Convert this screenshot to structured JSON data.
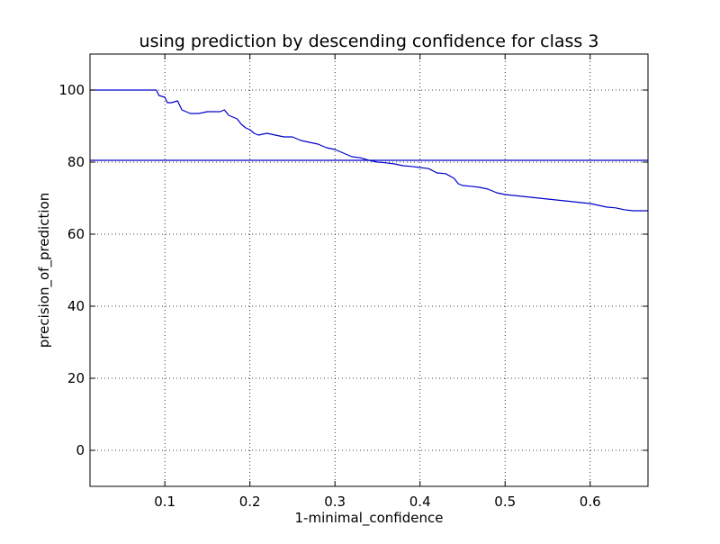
{
  "chart_data": {
    "type": "line",
    "title": "using prediction by descending confidence for class 3",
    "xlabel": "1-minimal_confidence",
    "ylabel": "precision_of_prediction",
    "xlim": [
      0.012,
      0.668
    ],
    "ylim": [
      -10,
      110
    ],
    "xticks": [
      0.1,
      0.2,
      0.3,
      0.4,
      0.5,
      0.6
    ],
    "xtick_labels": [
      "0.1",
      "0.2",
      "0.3",
      "0.4",
      "0.5",
      "0.6"
    ],
    "yticks": [
      0,
      20,
      40,
      60,
      80,
      100
    ],
    "ytick_labels": [
      "0",
      "20",
      "40",
      "60",
      "80",
      "100"
    ],
    "grid": true,
    "grid_style": "dotted",
    "line_color": "#0000cc",
    "hline": {
      "y": 80.5
    },
    "series": [
      {
        "x": [
          0.012,
          0.05,
          0.09,
          0.093,
          0.1,
          0.103,
          0.108,
          0.115,
          0.12,
          0.125,
          0.13,
          0.14,
          0.15,
          0.16,
          0.165,
          0.17,
          0.175,
          0.18,
          0.185,
          0.19,
          0.195,
          0.2,
          0.205,
          0.21,
          0.22,
          0.23,
          0.24,
          0.25,
          0.26,
          0.27,
          0.28,
          0.29,
          0.3,
          0.31,
          0.32,
          0.33,
          0.34,
          0.35,
          0.36,
          0.37,
          0.38,
          0.39,
          0.4,
          0.41,
          0.42,
          0.43,
          0.44,
          0.445,
          0.45,
          0.46,
          0.47,
          0.48,
          0.49,
          0.5,
          0.52,
          0.54,
          0.56,
          0.58,
          0.6,
          0.62,
          0.63,
          0.64,
          0.65,
          0.668
        ],
        "y": [
          100,
          100,
          100,
          98.5,
          98,
          96.5,
          96.5,
          97,
          94.5,
          94,
          93.5,
          93.5,
          94,
          94,
          94,
          94.5,
          93,
          92.5,
          92,
          90.5,
          89.5,
          89,
          88,
          87.5,
          88,
          87.5,
          87,
          87,
          86,
          85.5,
          85,
          84,
          83.5,
          82.5,
          81.5,
          81.2,
          80.5,
          80,
          79.8,
          79.5,
          79,
          78.8,
          78.5,
          78.2,
          77,
          76.8,
          75.5,
          74,
          73.5,
          73.3,
          73,
          72.5,
          71.5,
          71,
          70.5,
          70,
          69.5,
          69,
          68.5,
          67.5,
          67.3,
          66.8,
          66.5,
          66.5
        ]
      }
    ]
  }
}
